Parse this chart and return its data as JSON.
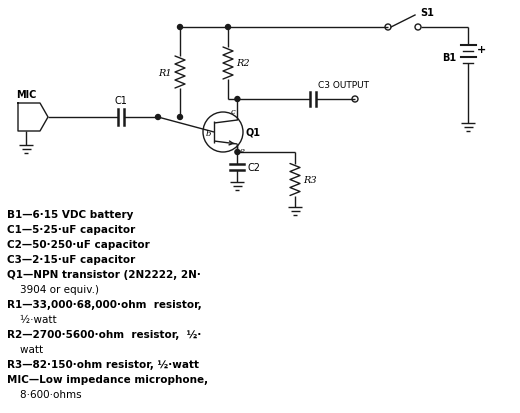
{
  "bg_color": "#ffffff",
  "line_color": "#1a1a1a",
  "bom_lines": [
    [
      "B1—6·15 VDC battery",
      true
    ],
    [
      "C1—5·25·uF capacitor",
      true
    ],
    [
      "C2—50·250·uF capacitor",
      true
    ],
    [
      "C3—2·15·uF capacitor",
      true
    ],
    [
      "Q1—NPN transistor (2N2222, 2N·",
      true
    ],
    [
      "    3904 or equiv.)",
      false
    ],
    [
      "R1—33,000·68,000·ohm  resistor,",
      true
    ],
    [
      "    ½·watt",
      false
    ],
    [
      "R2—2700·5600·ohm  resistor,  ½·",
      true
    ],
    [
      "    watt",
      false
    ],
    [
      "R3—82·150·ohm resistor, ½·watt",
      true
    ],
    [
      "MIC—Low impedance microphone,",
      true
    ],
    [
      "    8·600·ohms",
      false
    ]
  ]
}
